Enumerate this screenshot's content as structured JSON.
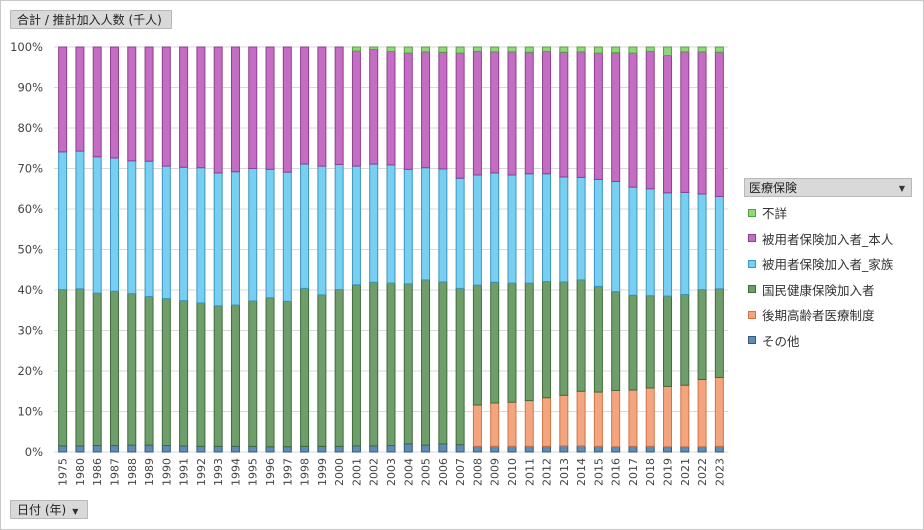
{
  "header": {
    "value_field": "合計 / 推計加入人数 (千人)"
  },
  "footer": {
    "axis_field": "日付 (年)"
  },
  "legend": {
    "title": "医療保険",
    "items": [
      {
        "label": "不詳",
        "color": "#8fd67d",
        "border": "#55a040"
      },
      {
        "label": "被用者保険加入者_本人",
        "color": "#c36ec3",
        "border": "#8e3f8e"
      },
      {
        "label": "被用者保険加入者_家族",
        "color": "#77cff2",
        "border": "#3f96bd"
      },
      {
        "label": "国民健康保険加入者",
        "color": "#6f9e6b",
        "border": "#3f6b3c"
      },
      {
        "label": "後期高齢者医療制度",
        "color": "#f3a57f",
        "border": "#d27444"
      },
      {
        "label": "その他",
        "color": "#5f8cb5",
        "border": "#335a80"
      }
    ]
  },
  "chart_data": {
    "type": "bar",
    "stacked": "percent",
    "title": "",
    "xlabel": "日付 (年)",
    "ylabel": "合計 / 推計加入人数 (千人)",
    "ylim": [
      0,
      100
    ],
    "y_ticks": [
      "0%",
      "10%",
      "20%",
      "30%",
      "40%",
      "50%",
      "60%",
      "70%",
      "80%",
      "90%",
      "100%"
    ],
    "categories": [
      "1975",
      "1980",
      "1986",
      "1987",
      "1988",
      "1989",
      "1990",
      "1991",
      "1992",
      "1993",
      "1994",
      "1995",
      "1996",
      "1997",
      "1998",
      "1999",
      "2000",
      "2001",
      "2002",
      "2003",
      "2004",
      "2005",
      "2006",
      "2007",
      "2008",
      "2009",
      "2010",
      "2011",
      "2012",
      "2013",
      "2014",
      "2015",
      "2016",
      "2017",
      "2018",
      "2019",
      "2021",
      "2022",
      "2023"
    ],
    "series": [
      {
        "name": "その他",
        "values": [
          1.5,
          1.5,
          1.6,
          1.6,
          1.7,
          1.7,
          1.6,
          1.5,
          1.4,
          1.4,
          1.4,
          1.4,
          1.3,
          1.3,
          1.4,
          1.4,
          1.4,
          1.5,
          1.5,
          1.6,
          2.0,
          1.7,
          2.0,
          1.8,
          1.4,
          1.4,
          1.4,
          1.4,
          1.4,
          1.5,
          1.5,
          1.4,
          1.3,
          1.4,
          1.4,
          1.3,
          1.3,
          1.3,
          1.4
        ]
      },
      {
        "name": "後期高齢者医療制度",
        "values": [
          0,
          0,
          0,
          0,
          0,
          0,
          0,
          0,
          0,
          0,
          0,
          0,
          0,
          0,
          0,
          0,
          0,
          0,
          0,
          0,
          0,
          0,
          0,
          0,
          10.2,
          10.7,
          10.9,
          11.3,
          12.0,
          12.5,
          13.5,
          13.4,
          13.9,
          13.9,
          14.4,
          14.9,
          15.2,
          16.6,
          17.0
        ]
      },
      {
        "name": "国民健康保険加入者",
        "values": [
          38.6,
          38.8,
          37.6,
          38.1,
          37.4,
          36.7,
          36.3,
          35.9,
          35.4,
          34.7,
          34.9,
          35.9,
          36.8,
          35.9,
          39.0,
          37.4,
          38.7,
          39.8,
          40.4,
          40.1,
          39.1,
          40.8,
          40.0,
          38.6,
          29.6,
          29.8,
          29.4,
          29.0,
          28.7,
          28.0,
          27.5,
          26.1,
          24.4,
          23.4,
          22.8,
          22.3,
          22.4,
          22.2,
          21.9
        ]
      },
      {
        "name": "被用者保険加入者_家族",
        "values": [
          34.0,
          34.0,
          33.7,
          32.9,
          32.8,
          33.4,
          32.7,
          32.9,
          33.4,
          32.8,
          32.9,
          32.7,
          31.7,
          31.9,
          30.7,
          31.8,
          30.9,
          29.3,
          29.2,
          29.2,
          28.0,
          27.7,
          27.9,
          27.2,
          27.2,
          27.0,
          26.7,
          27.0,
          26.6,
          25.9,
          25.3,
          26.4,
          27.2,
          26.7,
          26.4,
          25.5,
          25.2,
          23.6,
          22.8
        ]
      },
      {
        "name": "被用者保険加入者_本人",
        "values": [
          25.9,
          25.7,
          27.1,
          27.4,
          28.1,
          28.2,
          29.4,
          29.7,
          29.8,
          31.1,
          30.8,
          30.0,
          30.2,
          30.9,
          28.9,
          29.4,
          29.0,
          28.4,
          28.3,
          28.0,
          28.4,
          28.6,
          28.8,
          30.9,
          30.5,
          29.9,
          30.4,
          30.0,
          30.2,
          30.8,
          31.0,
          31.2,
          31.8,
          33.1,
          33.9,
          33.9,
          34.7,
          35.1,
          35.6
        ]
      },
      {
        "name": "不詳",
        "values": [
          0,
          0,
          0,
          0,
          0,
          0,
          0,
          0,
          0,
          0,
          0,
          0,
          0,
          0,
          0,
          0,
          0,
          1.0,
          0.6,
          1.1,
          1.5,
          1.2,
          1.3,
          1.5,
          1.1,
          1.2,
          1.2,
          1.3,
          1.1,
          1.3,
          1.2,
          1.5,
          1.4,
          1.5,
          1.1,
          2.1,
          1.2,
          1.2,
          1.3
        ]
      }
    ]
  }
}
